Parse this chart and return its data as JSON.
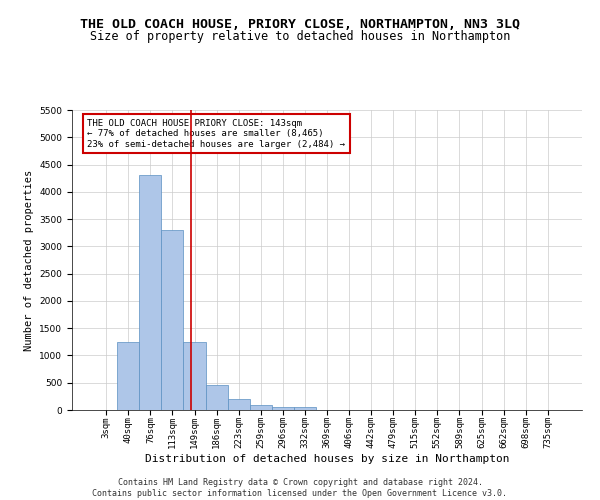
{
  "title": "THE OLD COACH HOUSE, PRIORY CLOSE, NORTHAMPTON, NN3 3LQ",
  "subtitle": "Size of property relative to detached houses in Northampton",
  "xlabel": "Distribution of detached houses by size in Northampton",
  "ylabel": "Number of detached properties",
  "footer_line1": "Contains HM Land Registry data © Crown copyright and database right 2024.",
  "footer_line2": "Contains public sector information licensed under the Open Government Licence v3.0.",
  "categories": [
    "3sqm",
    "40sqm",
    "76sqm",
    "113sqm",
    "149sqm",
    "186sqm",
    "223sqm",
    "259sqm",
    "296sqm",
    "332sqm",
    "369sqm",
    "406sqm",
    "442sqm",
    "479sqm",
    "515sqm",
    "552sqm",
    "589sqm",
    "625sqm",
    "662sqm",
    "698sqm",
    "735sqm"
  ],
  "values": [
    0,
    1250,
    4300,
    3300,
    1250,
    450,
    200,
    100,
    55,
    50,
    0,
    0,
    0,
    0,
    0,
    0,
    0,
    0,
    0,
    0,
    0
  ],
  "bar_color": "#aec6e8",
  "bar_edge_color": "#5a8fc2",
  "grid_color": "#cccccc",
  "annotation_line_color": "#cc0000",
  "annotation_box_text": "THE OLD COACH HOUSE PRIORY CLOSE: 143sqm\n← 77% of detached houses are smaller (8,465)\n23% of semi-detached houses are larger (2,484) →",
  "annotation_box_color": "#ffffff",
  "annotation_box_edge_color": "#cc0000",
  "ylim": [
    0,
    5500
  ],
  "yticks": [
    0,
    500,
    1000,
    1500,
    2000,
    2500,
    3000,
    3500,
    4000,
    4500,
    5000,
    5500
  ],
  "title_fontsize": 9.5,
  "subtitle_fontsize": 8.5,
  "xlabel_fontsize": 8,
  "ylabel_fontsize": 7.5,
  "tick_fontsize": 6.5,
  "annotation_fontsize": 6.5,
  "footer_fontsize": 6,
  "background_color": "#ffffff"
}
